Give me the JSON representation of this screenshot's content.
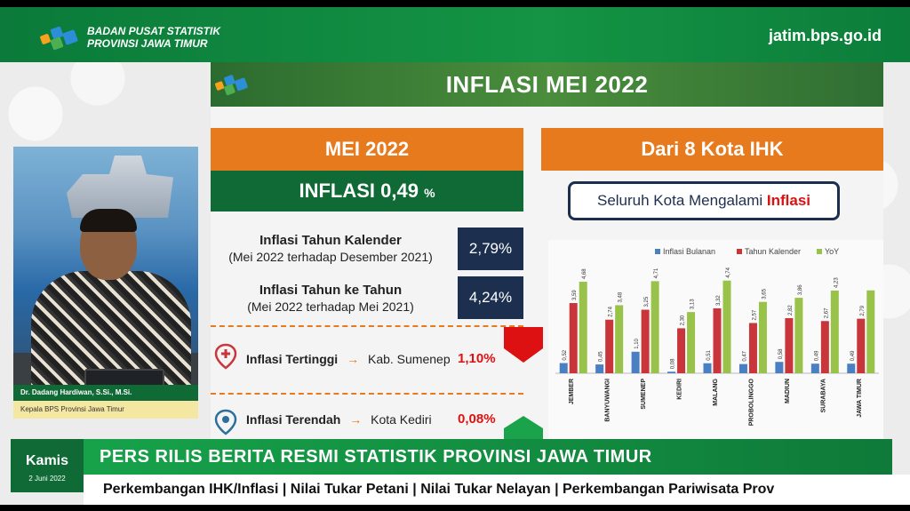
{
  "header": {
    "org_line1": "BADAN PUSAT STATISTIK",
    "org_line2": "PROVINSI JAWA TIMUR",
    "url": "jatim.bps.go.id"
  },
  "slide": {
    "title": "INFLASI MEI 2022",
    "left": {
      "header": "MEI 2022",
      "inflasi_label": "INFLASI 0,49",
      "inflasi_unit": "%",
      "rows": [
        {
          "title": "Inflasi Tahun Kalender",
          "subtitle": "(Mei 2022 terhadap Desember 2021)",
          "value": "2,79%"
        },
        {
          "title": "Inflasi Tahun ke Tahun",
          "subtitle": "(Mei 2022 terhadap Mei 2021)",
          "value": "4,24%"
        }
      ],
      "highest": {
        "label": "Inflasi Tertinggi",
        "arrow": "→",
        "city": "Kab. Sumenep",
        "value": "1,10%"
      },
      "lowest": {
        "label": "Inflasi Terendah",
        "arrow": "→",
        "city": "Kota Kediri",
        "value": "0,08%"
      }
    },
    "right": {
      "header": "Dari 8 Kota IHK",
      "callout_text": "Seluruh Kota Mengalami ",
      "callout_em": "Inflasi"
    }
  },
  "chart_data": {
    "type": "bar",
    "categories": [
      "JEMBER",
      "BANYUWANGI",
      "SUMENEP",
      "KEDIRI",
      "MALANG",
      "PROBOLINGGO",
      "MADIUN",
      "SURABAYA",
      "JAWA TIMUR"
    ],
    "series": [
      {
        "name": "Inflasi Bulanan",
        "color": "#4a7fc1",
        "values": [
          0.52,
          0.45,
          1.1,
          0.08,
          0.51,
          0.47,
          0.58,
          0.49,
          0.49
        ]
      },
      {
        "name": "Tahun Kalender",
        "color": "#c8363b",
        "values": [
          3.59,
          2.74,
          3.25,
          2.3,
          3.32,
          2.57,
          2.82,
          2.67,
          2.79
        ]
      },
      {
        "name": "YoY",
        "color": "#98c24a",
        "values": [
          4.68,
          3.48,
          4.71,
          3.13,
          4.74,
          3.65,
          3.86,
          4.23,
          4.24
        ]
      }
    ],
    "labels": {
      "Inflasi Bulanan": [
        "0,52",
        "0,45",
        "1,10",
        "0,08",
        "0,51",
        "0,47",
        "0,58",
        "0,49",
        "0,49"
      ],
      "Tahun Kalender": [
        "3,59",
        "2,74",
        "3,25",
        "2,30",
        "3,32",
        "2,57",
        "2,82",
        "2,67",
        "2,79"
      ],
      "YoY": [
        "4,68",
        "3,48",
        "4,71",
        "3,13",
        "4,74",
        "3,65",
        "3,86",
        "4,23",
        ""
      ]
    },
    "ylim": [
      0,
      5
    ],
    "legend": "top"
  },
  "presenter": {
    "name": "Dr. Dadang Hardiwan, S.Si., M.Si.",
    "role": "Kepala BPS Provinsi Jawa Timur"
  },
  "bottom": {
    "day": "Kamis",
    "date": "2 Juni 2022",
    "headline": "PERS RILIS BERITA RESMI STATISTIK PROVINSI JAWA TIMUR",
    "ticker": "Perkembangan IHK/Inflasi | Nilai Tukar Petani | Nilai Tukar Nelayan | Perkembangan Pariwisata Prov"
  },
  "colors": {
    "green_dark": "#0f6a35",
    "orange": "#e87a1e",
    "navy": "#1d2f4f",
    "red": "#d11111"
  }
}
